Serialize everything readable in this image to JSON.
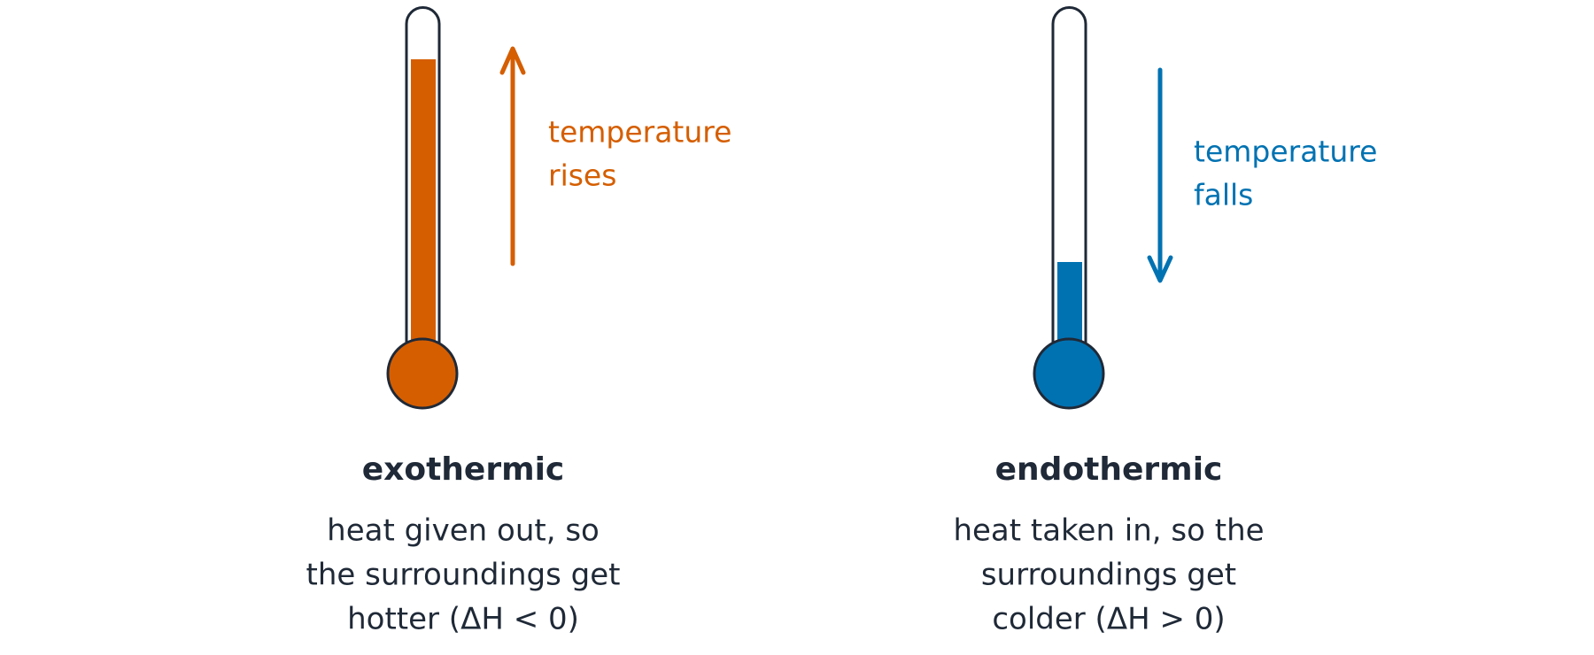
{
  "panels": [
    {
      "title": "exothermic",
      "arrow_label": [
        "temperature",
        "rises"
      ],
      "description": [
        "heat given out, so",
        "the surroundings get",
        "hotter (ΔH < 0)"
      ]
    },
    {
      "title": "endothermic",
      "arrow_label": [
        "temperature",
        "falls"
      ],
      "description": [
        "heat taken in, so the",
        "surroundings get",
        "colder (ΔH > 0)"
      ]
    }
  ]
}
